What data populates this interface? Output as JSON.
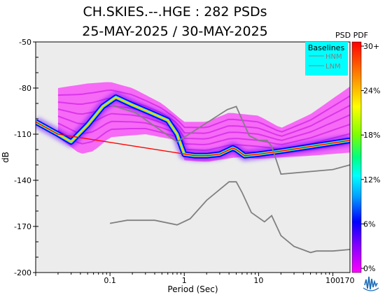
{
  "chart_data": {
    "type": "heatmap",
    "title": "CH.SKIES.--.HGE : 282 PSDs",
    "subtitle": "25-MAY-2025 / 30-MAY-2025",
    "xlabel": "Period (Sec)",
    "ylabel": "dB",
    "x_scale": "log",
    "xlim": [
      0.01,
      170
    ],
    "ylim": [
      -200,
      -50
    ],
    "x_ticks": [
      {
        "value": 0.1,
        "label": "0.1"
      },
      {
        "value": 1,
        "label": "1"
      },
      {
        "value": 10,
        "label": "10"
      },
      {
        "value": 100,
        "label": "100"
      },
      {
        "value": 170,
        "label": "170"
      }
    ],
    "y_ticks": [
      {
        "value": -50,
        "label": "-50"
      },
      {
        "value": -80,
        "label": "-80"
      },
      {
        "value": -110,
        "label": "-110"
      },
      {
        "value": -140,
        "label": "-140"
      },
      {
        "value": -170,
        "label": "-170"
      },
      {
        "value": -200,
        "label": "-200"
      }
    ],
    "colorbar": {
      "title": "PSD PDF",
      "ticks": [
        "30+",
        "24%",
        "18%",
        "12%",
        "6%",
        "0%"
      ],
      "colors": [
        "#ff00ff",
        "#8000ff",
        "#0000ff",
        "#00a0ff",
        "#00ffff",
        "#00ff80",
        "#80ff00",
        "#ffff00",
        "#ff8000",
        "#ff0000"
      ]
    },
    "legend": {
      "title": "Baselines",
      "position": "top-right",
      "entries": [
        "HNM",
        "LNM"
      ],
      "background": "#00ffff"
    },
    "colors": {
      "plot_background": "#ececec",
      "baseline_line": "#808080",
      "peak_trace": "#ff0000",
      "edge_trace": "#0000ff",
      "halo": "#ff00ff"
    },
    "series": [
      {
        "name": "HNM",
        "points": [
          [
            0.1,
            -91
          ],
          [
            0.22,
            -96
          ],
          [
            0.8,
            -115
          ],
          [
            3.8,
            -94
          ],
          [
            5,
            -92
          ],
          [
            7.5,
            -111
          ],
          [
            10,
            -114
          ],
          [
            13,
            -114
          ],
          [
            15,
            -118
          ],
          [
            20,
            -136
          ],
          [
            100,
            -133
          ],
          [
            170,
            -130
          ]
        ]
      },
      {
        "name": "LNM",
        "points": [
          [
            0.1,
            -168
          ],
          [
            0.17,
            -166
          ],
          [
            0.4,
            -166
          ],
          [
            0.8,
            -169
          ],
          [
            1.2,
            -165
          ],
          [
            2,
            -153
          ],
          [
            4,
            -141
          ],
          [
            5,
            -141
          ],
          [
            6,
            -148
          ],
          [
            8,
            -161
          ],
          [
            12,
            -167
          ],
          [
            15,
            -163
          ],
          [
            20,
            -176
          ],
          [
            30,
            -183
          ],
          [
            50,
            -187
          ],
          [
            60,
            -186
          ],
          [
            100,
            -186
          ],
          [
            170,
            -185
          ]
        ]
      }
    ],
    "psd_mode": [
      [
        0.01,
        -102
      ],
      [
        0.02,
        -110
      ],
      [
        0.03,
        -115
      ],
      [
        0.05,
        -104
      ],
      [
        0.08,
        -92
      ],
      [
        0.12,
        -86
      ],
      [
        0.2,
        -91
      ],
      [
        0.35,
        -96
      ],
      [
        0.6,
        -101
      ],
      [
        0.8,
        -110
      ],
      [
        1,
        -123
      ],
      [
        1.4,
        -124
      ],
      [
        2,
        -124
      ],
      [
        3,
        -123
      ],
      [
        4.5,
        -119
      ],
      [
        5,
        -120
      ],
      [
        6.5,
        -124
      ],
      [
        10,
        -123
      ],
      [
        20,
        -121
      ],
      [
        50,
        -118
      ],
      [
        170,
        -114
      ]
    ],
    "psd_upper": [
      [
        0.02,
        -80
      ],
      [
        0.05,
        -77
      ],
      [
        0.1,
        -76
      ],
      [
        0.2,
        -80
      ],
      [
        0.5,
        -90
      ],
      [
        1,
        -102
      ],
      [
        2,
        -102
      ],
      [
        4,
        -96
      ],
      [
        10,
        -98
      ],
      [
        20,
        -106
      ],
      [
        50,
        -97
      ],
      [
        170,
        -79
      ]
    ],
    "psd_lower": [
      [
        0.01,
        -103
      ],
      [
        0.02,
        -112
      ],
      [
        0.04,
        -123
      ],
      [
        0.06,
        -121
      ],
      [
        0.1,
        -112
      ],
      [
        0.3,
        -110
      ],
      [
        0.8,
        -114
      ],
      [
        1,
        -127
      ],
      [
        2,
        -128
      ],
      [
        5,
        -125
      ],
      [
        10,
        -126
      ],
      [
        50,
        -124
      ],
      [
        170,
        -122
      ]
    ]
  }
}
